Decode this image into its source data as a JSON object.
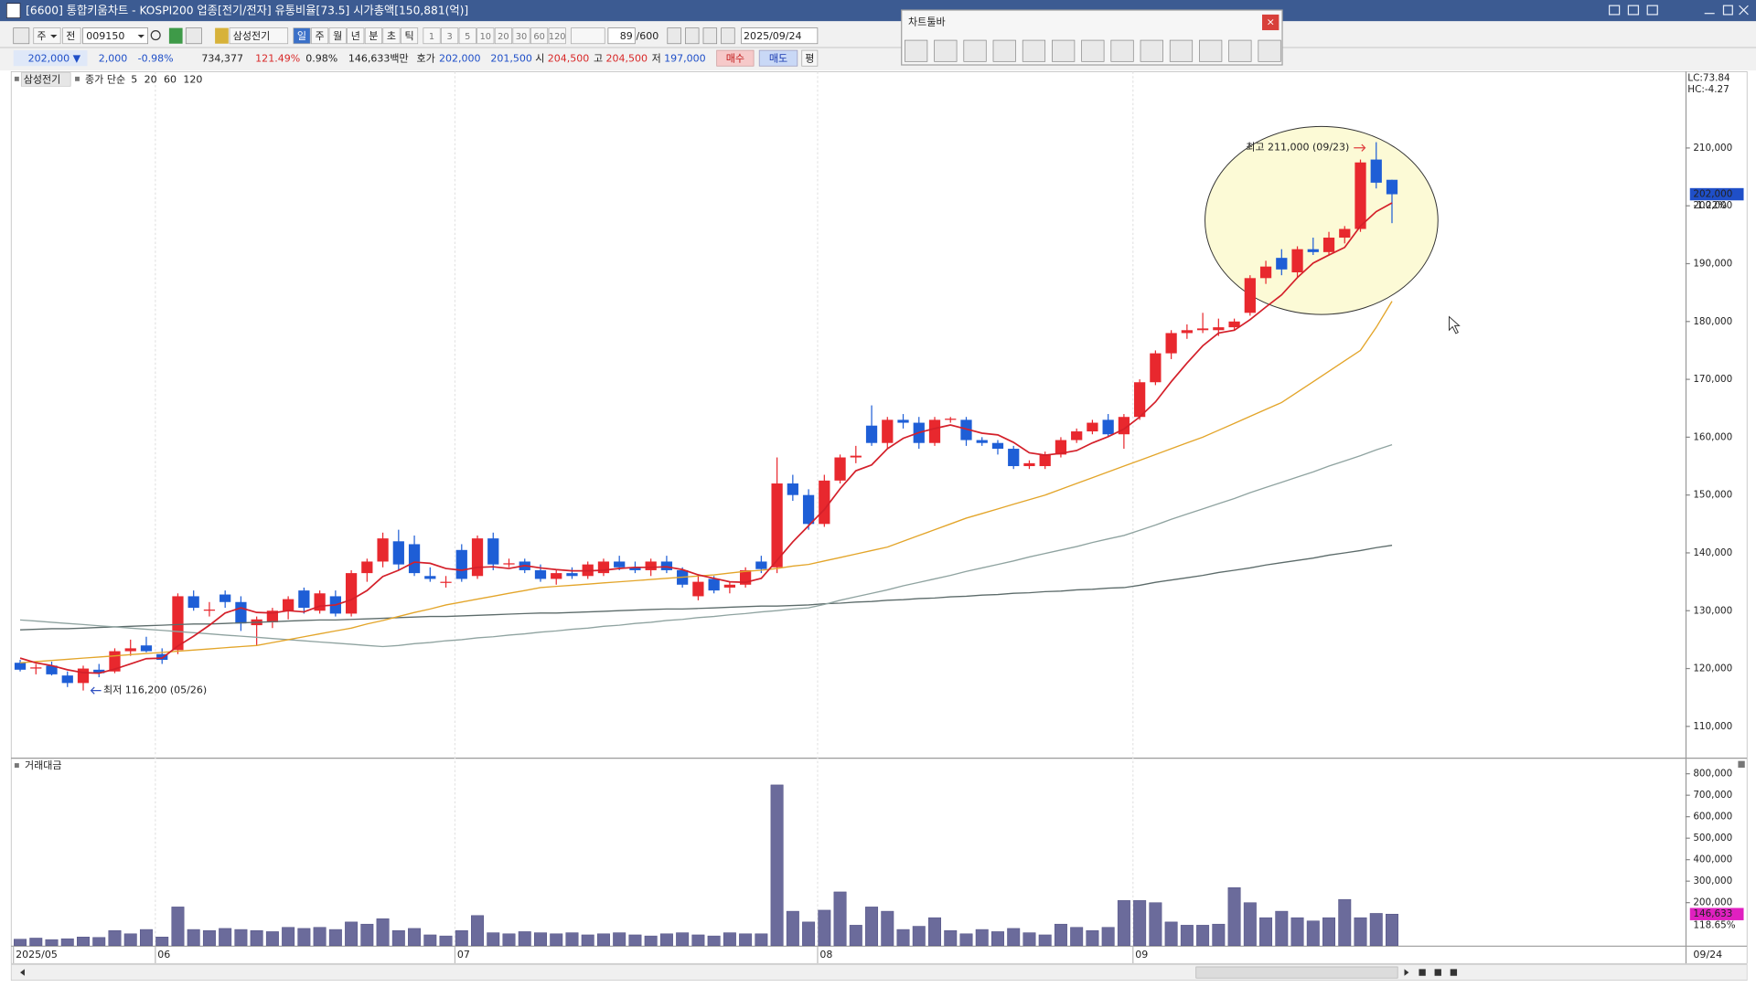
{
  "ui": {
    "window_title": "[6600] 통합키움차트 - KOSPI200 업종[전기/전자] 유통비율[73.5] 시가총액[150,881(억)]",
    "toolbar": {
      "week_combo": "주",
      "all_button": "전",
      "code": "009150",
      "name": "삼성전기",
      "periods": [
        "일",
        "주",
        "월",
        "년",
        "분",
        "초",
        "틱"
      ],
      "intervals": [
        "1",
        "3",
        "5",
        "10",
        "20",
        "30",
        "60",
        "120"
      ],
      "count": "89",
      "max_count": "/600",
      "date": "2025/09/24"
    },
    "quote": {
      "price": "202,000 ▼",
      "change": "2,000",
      "change_rate": "-0.98%",
      "volume": "734,377",
      "volume_ratio": "121.49%",
      "turnover_rate": "0.98%",
      "amount": "146,633백만",
      "bid_ask_label": "호가",
      "ask": "202,000",
      "bid": "201,500",
      "open_label": "시",
      "open": "204,500",
      "high_label": "고",
      "high": "204,500",
      "low_label": "저",
      "low": "197,000",
      "buy": "매수",
      "sell": "매도",
      "avg": "평"
    },
    "chart_toolbar_title": "차트툴바",
    "close_button": "×"
  },
  "chart_data": [
    {
      "type": "candlestick",
      "title": "삼성전기",
      "ma_label": "종가 단순",
      "categories": [
        "2025/05",
        null,
        null,
        null,
        null,
        null,
        null,
        null,
        null,
        "06",
        null,
        null,
        null,
        null,
        null,
        null,
        null,
        null,
        null,
        null,
        null,
        null,
        null,
        null,
        null,
        null,
        null,
        null,
        "07",
        null,
        null,
        null,
        null,
        null,
        null,
        null,
        null,
        null,
        null,
        null,
        null,
        null,
        null,
        null,
        null,
        null,
        null,
        null,
        null,
        null,
        null,
        "08",
        null,
        null,
        null,
        null,
        null,
        null,
        null,
        null,
        null,
        null,
        null,
        null,
        null,
        null,
        null,
        null,
        null,
        null,
        null,
        "09",
        null,
        null,
        null,
        null,
        null,
        null,
        null,
        null,
        null,
        null,
        null,
        null,
        null,
        null,
        null,
        null
      ],
      "open": [
        121000,
        120000,
        120500,
        118800,
        117500,
        119800,
        119500,
        123000,
        124000,
        122500,
        123200,
        132500,
        130000,
        132800,
        131500,
        127500,
        128000,
        130000,
        133500,
        130000,
        132500,
        129500,
        136500,
        138500,
        142000,
        141500,
        136000,
        135000,
        140500,
        136000,
        142500,
        138000,
        138500,
        137000,
        135500,
        136500,
        136000,
        136500,
        138500,
        137500,
        137000,
        138500,
        137000,
        132500,
        135500,
        134000,
        134500,
        138500,
        137500,
        152000,
        150000,
        145000,
        152500,
        156500,
        162000,
        159000,
        163000,
        162500,
        159000,
        163000,
        163000,
        159500,
        159000,
        158000,
        155000,
        155000,
        157000,
        159500,
        161000,
        163000,
        160500,
        163500,
        169500,
        174500,
        178000,
        178500,
        178500,
        179000,
        181500,
        187500,
        191000,
        188500,
        192500,
        192000,
        194500,
        196000,
        208000,
        204500
      ],
      "high": [
        121500,
        120800,
        121200,
        119500,
        120500,
        120800,
        123500,
        125000,
        125500,
        123500,
        133000,
        133500,
        131500,
        133500,
        132500,
        129000,
        130500,
        132500,
        134000,
        133500,
        133500,
        137000,
        139000,
        143500,
        144000,
        143000,
        137500,
        136000,
        141500,
        143000,
        143500,
        139000,
        139000,
        138000,
        137000,
        137500,
        138500,
        139000,
        139500,
        138500,
        139000,
        139500,
        137500,
        136000,
        136000,
        135000,
        137500,
        139500,
        156500,
        153500,
        151000,
        153500,
        157000,
        158500,
        165500,
        163500,
        164000,
        163500,
        163500,
        163500,
        163500,
        160000,
        159500,
        158500,
        156000,
        157500,
        160000,
        161500,
        163000,
        164000,
        164000,
        170000,
        175000,
        178500,
        179500,
        181500,
        180500,
        180500,
        188000,
        190500,
        192500,
        193000,
        194500,
        195500,
        196500,
        208000,
        211000,
        204500
      ],
      "low": [
        119500,
        119000,
        118800,
        116800,
        116200,
        118500,
        119200,
        122200,
        122800,
        120800,
        122500,
        130000,
        129000,
        130500,
        126500,
        124000,
        127000,
        128500,
        129500,
        129500,
        129000,
        129000,
        135000,
        137500,
        137000,
        136000,
        135000,
        134000,
        135000,
        135500,
        137000,
        137500,
        136500,
        135000,
        134500,
        135500,
        135500,
        136000,
        137000,
        136500,
        136000,
        136500,
        134000,
        131800,
        133000,
        133000,
        134000,
        136500,
        136500,
        149000,
        144000,
        144500,
        152000,
        155500,
        158500,
        158000,
        161500,
        158000,
        158500,
        162500,
        158500,
        158500,
        157000,
        154500,
        154500,
        154500,
        156500,
        159000,
        160500,
        160000,
        158000,
        163000,
        169000,
        173500,
        177000,
        178000,
        177500,
        178500,
        181000,
        186500,
        188000,
        187500,
        191500,
        191500,
        193500,
        195500,
        203000,
        197000
      ],
      "close": [
        119800,
        120200,
        119000,
        117500,
        120000,
        119200,
        123000,
        123500,
        123000,
        121500,
        132500,
        130500,
        130200,
        131500,
        127800,
        128500,
        130000,
        132000,
        130500,
        133000,
        129500,
        136500,
        138500,
        142500,
        138000,
        136500,
        135500,
        135000,
        135500,
        142500,
        138000,
        138200,
        137000,
        135500,
        136500,
        136000,
        138000,
        138500,
        137500,
        137000,
        138500,
        137000,
        134500,
        135000,
        133500,
        134500,
        137000,
        137200,
        152000,
        150000,
        145000,
        152500,
        156500,
        156800,
        159000,
        163000,
        162500,
        159000,
        163000,
        163200,
        159500,
        159000,
        158000,
        155000,
        155500,
        157000,
        159500,
        161000,
        162500,
        160500,
        163500,
        169500,
        174500,
        178000,
        178500,
        178800,
        179000,
        180000,
        187500,
        189500,
        189000,
        192500,
        192000,
        194500,
        196000,
        207500,
        204000,
        202000
      ],
      "up_color": "#e8282e",
      "down_color": "#1e5ed6",
      "series": [
        {
          "name": "120",
          "color": "#5c6b6a",
          "values": [
            126700,
            126800,
            126900,
            126900,
            127000,
            127100,
            127200,
            127300,
            127400,
            127500,
            127600,
            127700,
            127700,
            127800,
            127900,
            128000,
            128100,
            128200,
            128300,
            128400,
            128400,
            128500,
            128600,
            128700,
            128800,
            128900,
            129000,
            129000,
            129100,
            129200,
            129300,
            129400,
            129500,
            129600,
            129600,
            129700,
            129800,
            129900,
            130000,
            130100,
            130200,
            130300,
            130300,
            130400,
            130500,
            130600,
            130700,
            130800,
            130800,
            130900,
            131000,
            131200,
            131300,
            131500,
            131600,
            131800,
            131900,
            132100,
            132200,
            132400,
            132500,
            132700,
            132800,
            133000,
            133100,
            133300,
            133400,
            133600,
            133700,
            133900,
            134000,
            134400,
            134900,
            135300,
            135700,
            136100,
            136600,
            137000,
            137400,
            137900,
            138300,
            138700,
            139100,
            139600,
            140000,
            140400,
            140900,
            141300
          ]
        },
        {
          "name": "60",
          "color": "#8fa3a0",
          "values": [
            128400,
            128200,
            128000,
            127800,
            127600,
            127400,
            127200,
            127000,
            126800,
            126600,
            126400,
            126200,
            126000,
            125800,
            125600,
            125400,
            125200,
            125000,
            124800,
            124600,
            124400,
            124200,
            124000,
            123800,
            124000,
            124300,
            124500,
            124800,
            125000,
            125300,
            125500,
            125800,
            126000,
            126300,
            126500,
            126800,
            127000,
            127300,
            127500,
            127800,
            128000,
            128300,
            128500,
            128800,
            129000,
            129300,
            129500,
            129800,
            130000,
            130300,
            130500,
            131100,
            131800,
            132400,
            133000,
            133600,
            134300,
            134900,
            135500,
            136100,
            136800,
            137400,
            138000,
            138600,
            139300,
            139900,
            140500,
            141100,
            141800,
            142400,
            143000,
            143900,
            144800,
            145800,
            146700,
            147600,
            148500,
            149400,
            150400,
            151300,
            152200,
            153100,
            154000,
            155000,
            155900,
            156800,
            157800,
            158700
          ]
        },
        {
          "name": "20",
          "color": "#e3a52a",
          "values": [
            121000,
            121200,
            121400,
            121600,
            121800,
            122000,
            122200,
            122400,
            122600,
            122800,
            123000,
            123200,
            123400,
            123600,
            123800,
            124000,
            124500,
            125000,
            125500,
            126000,
            126500,
            127000,
            127700,
            128300,
            129000,
            129700,
            130300,
            131000,
            131500,
            132000,
            132500,
            133000,
            133500,
            134000,
            134200,
            134400,
            134600,
            134800,
            135000,
            135200,
            135400,
            135600,
            135800,
            136000,
            136200,
            136500,
            136800,
            137000,
            137300,
            137700,
            138000,
            138600,
            139200,
            139800,
            140400,
            141000,
            142000,
            143000,
            144000,
            145000,
            146000,
            146800,
            147600,
            148400,
            149200,
            150000,
            151000,
            152000,
            153000,
            154000,
            155000,
            156000,
            157000,
            158000,
            159000,
            160000,
            161200,
            162400,
            163600,
            164800,
            166000,
            167800,
            169600,
            171400,
            173200,
            175000,
            179000,
            183500
          ]
        },
        {
          "name": "5",
          "color": "#d4202a",
          "values": [
            121800,
            121000,
            120500,
            119800,
            119300,
            119200,
            119900,
            120800,
            121700,
            121800,
            123900,
            125600,
            127500,
            129600,
            130500,
            129700,
            129600,
            130000,
            129800,
            130800,
            131000,
            131900,
            133500,
            135900,
            137000,
            138400,
            138200,
            137300,
            137000,
            137500,
            137600,
            137300,
            137800,
            137400,
            137100,
            136900,
            136900,
            137000,
            137300,
            137500,
            137500,
            137600,
            137100,
            136200,
            135600,
            135000,
            134900,
            135600,
            138700,
            141900,
            144700,
            147500,
            151100,
            154200,
            155200,
            158000,
            159800,
            160800,
            161500,
            162100,
            161400,
            160700,
            160400,
            159100,
            157300,
            156900,
            157200,
            157700,
            159000,
            160100,
            161400,
            163500,
            166100,
            169600,
            172800,
            175800,
            178000,
            178500,
            180300,
            182500,
            184600,
            187600,
            190100,
            191500,
            192800,
            196500,
            199000,
            200500
          ]
        }
      ],
      "ylim": [
        104800,
        223200
      ],
      "yticks": [
        {
          "value": 210000,
          "label": "210,000"
        },
        {
          "value": 200000,
          "label": "200,000"
        },
        {
          "value": 190000,
          "label": "190,000"
        },
        {
          "value": 180000,
          "label": "180,000"
        },
        {
          "value": 170000,
          "label": "170,000"
        },
        {
          "value": 160000,
          "label": "160,000"
        },
        {
          "value": 150000,
          "label": "150,000"
        },
        {
          "value": 140000,
          "label": "140,000"
        },
        {
          "value": 130000,
          "label": "130,000"
        },
        {
          "value": 120000,
          "label": "120,000"
        },
        {
          "value": 110000,
          "label": "110,000"
        }
      ],
      "high_annotation": "최고 211,000 (09/23)",
      "low_annotation": "최저 116,200 (05/26)",
      "last_close_label": "202,000",
      "last_change_label": "-1.22%",
      "lc_label": "LC:73.84",
      "hc_label": "HC:-4.27",
      "end_date_label": "09/24"
    },
    {
      "type": "bar",
      "title": "거래대금",
      "color": "#6b6b9b",
      "values": [
        30000,
        35000,
        28000,
        32000,
        40000,
        38000,
        70000,
        55000,
        75000,
        40000,
        180000,
        75000,
        70000,
        80000,
        75000,
        70000,
        65000,
        85000,
        80000,
        85000,
        75000,
        110000,
        100000,
        125000,
        70000,
        80000,
        50000,
        45000,
        70000,
        140000,
        60000,
        55000,
        65000,
        60000,
        55000,
        60000,
        50000,
        55000,
        60000,
        50000,
        45000,
        55000,
        60000,
        50000,
        45000,
        60000,
        55000,
        55000,
        748000,
        160000,
        110000,
        165000,
        250000,
        95000,
        180000,
        160000,
        75000,
        90000,
        130000,
        70000,
        55000,
        75000,
        65000,
        80000,
        60000,
        50000,
        100000,
        85000,
        70000,
        85000,
        210000,
        210000,
        200000,
        110000,
        95000,
        95000,
        100000,
        270000,
        200000,
        130000,
        160000,
        130000,
        115000,
        130000,
        215000,
        130000,
        150000,
        146633
      ],
      "ylim": [
        0,
        870000
      ],
      "yticks": [
        {
          "value": 800000,
          "label": "800,000"
        },
        {
          "value": 700000,
          "label": "700,000"
        },
        {
          "value": 600000,
          "label": "600,000"
        },
        {
          "value": 500000,
          "label": "500,000"
        },
        {
          "value": 400000,
          "label": "400,000"
        },
        {
          "value": 300000,
          "label": "300,000"
        },
        {
          "value": 200000,
          "label": "200,000"
        }
      ],
      "last_value_label": "146,633",
      "last_ratio_label": "118.65%"
    }
  ]
}
